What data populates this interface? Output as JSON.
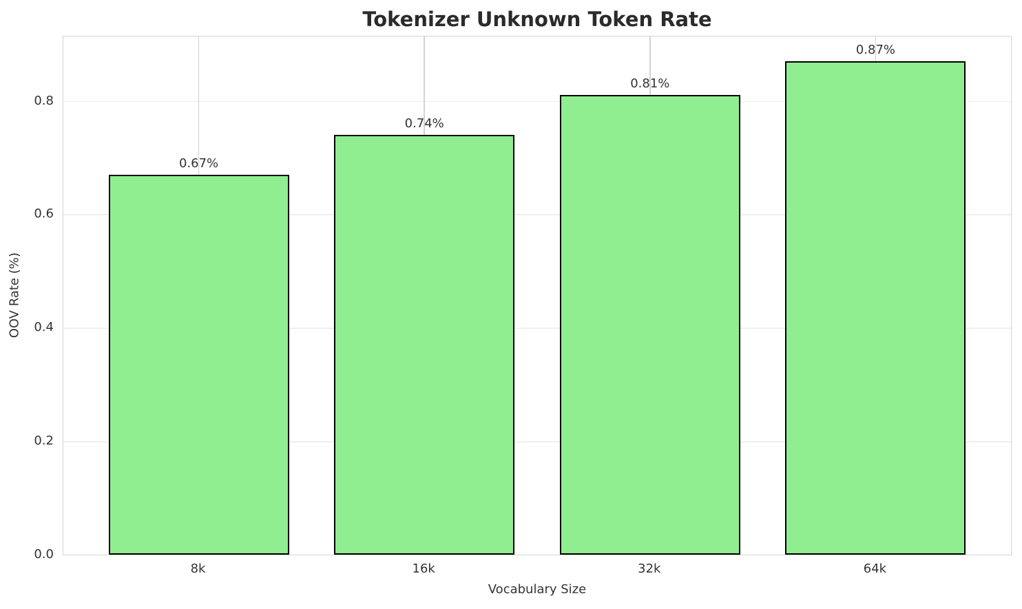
{
  "chart_data": {
    "type": "bar",
    "title": "Tokenizer Unknown Token Rate",
    "xlabel": "Vocabulary Size",
    "ylabel": "OOV Rate (%)",
    "categories": [
      "8k",
      "16k",
      "32k",
      "64k"
    ],
    "values": [
      0.67,
      0.74,
      0.81,
      0.87
    ],
    "bar_labels": [
      "0.67%",
      "0.74%",
      "0.81%",
      "0.87%"
    ],
    "y_ticks": [
      0.0,
      0.2,
      0.4,
      0.6,
      0.8
    ],
    "y_tick_labels": [
      "0.0",
      "0.2",
      "0.4",
      "0.6",
      "0.8"
    ],
    "ylim": [
      0,
      0.9135
    ],
    "grid": true,
    "legend": "none",
    "bar_color": "#90EE90",
    "bar_edge_color": "#000000"
  },
  "colors": {
    "background": "#ffffff",
    "spine": "#d4d4d4",
    "grid_horizontal": "#efefef",
    "grid_vertical": "#d2d2d2",
    "title_text": "#2b2b2b",
    "tick_text": "#333333"
  }
}
